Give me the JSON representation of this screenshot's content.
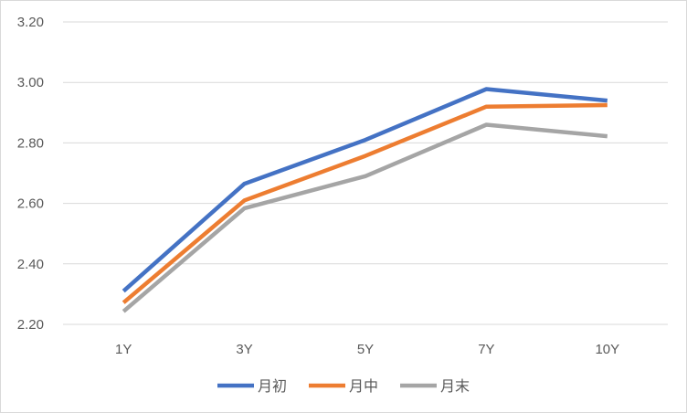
{
  "chart_data": {
    "type": "line",
    "title": "",
    "xlabel": "",
    "ylabel": "",
    "categories": [
      "1Y",
      "3Y",
      "5Y",
      "7Y",
      "10Y"
    ],
    "y_ticks": [
      "2.20",
      "2.40",
      "2.60",
      "2.80",
      "3.00",
      "3.20"
    ],
    "ylim": [
      2.2,
      3.2
    ],
    "grid": true,
    "legend_position": "bottom",
    "series": [
      {
        "name": "月初",
        "color": "#4472c4",
        "values": [
          2.31,
          2.665,
          2.81,
          2.978,
          2.94
        ]
      },
      {
        "name": "月中",
        "color": "#ed7d31",
        "values": [
          2.272,
          2.61,
          2.757,
          2.92,
          2.925
        ]
      },
      {
        "name": "月末",
        "color": "#a5a5a5",
        "values": [
          2.243,
          2.584,
          2.69,
          2.86,
          2.822
        ]
      }
    ]
  }
}
